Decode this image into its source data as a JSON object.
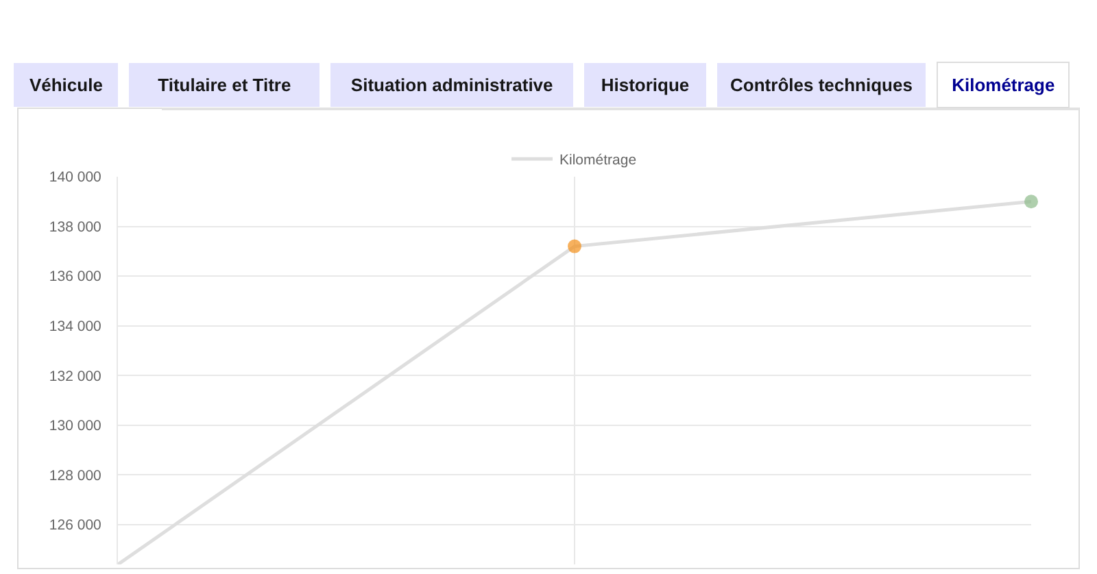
{
  "chart_data": {
    "type": "line",
    "categories": [
      null,
      null,
      null
    ],
    "series": [
      {
        "name": "Kilométrage",
        "color": "#dedede",
        "values": [
          124400,
          137200,
          139000
        ],
        "colors": [
          null,
          "#f39019",
          "#8dba8a"
        ]
      }
    ],
    "ylim": [
      124400,
      140000
    ],
    "yticks": [
      {
        "value": 126000,
        "label": "126 000"
      },
      {
        "value": 128000,
        "label": "128 000"
      },
      {
        "value": 130000,
        "label": "130 000"
      },
      {
        "value": 132000,
        "label": "132 000"
      },
      {
        "value": 134000,
        "label": "134 000"
      },
      {
        "value": 136000,
        "label": "136 000"
      },
      {
        "value": 138000,
        "label": "138 000"
      },
      {
        "value": 140000,
        "label": "140 000"
      }
    ],
    "grid": true,
    "legend": "top",
    "marker": "circle",
    "line_style": "solid",
    "annotations": [
      "Véhicule",
      "Titulaire et Titre",
      "Situation administrative",
      "Historique",
      "Contrôles techniques",
      "Kilométrage"
    ]
  }
}
